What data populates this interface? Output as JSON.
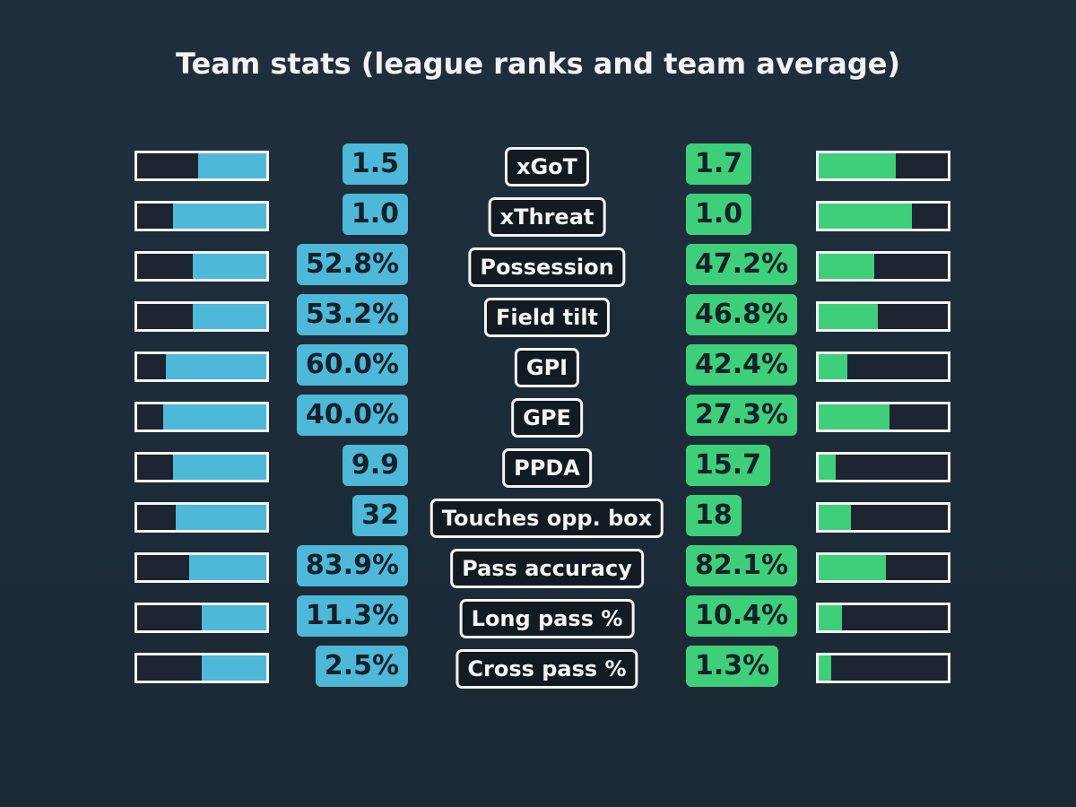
{
  "title": "Team stats (league ranks and team average)",
  "colors": {
    "left": "#4db8d8",
    "right": "#3ecf7a"
  },
  "rows": [
    {
      "label": "xGoT",
      "left_value": "1.5",
      "right_value": "1.7",
      "left_rank_fill": 53,
      "right_rank_fill": 60
    },
    {
      "label": "xThreat",
      "left_value": "1.0",
      "right_value": "1.0",
      "left_rank_fill": 72,
      "right_rank_fill": 72
    },
    {
      "label": "Possession",
      "left_value": "52.8%",
      "right_value": "47.2%",
      "left_rank_fill": 57,
      "right_rank_fill": 43
    },
    {
      "label": "Field tilt",
      "left_value": "53.2%",
      "right_value": "46.8%",
      "left_rank_fill": 57,
      "right_rank_fill": 46
    },
    {
      "label": "GPI",
      "left_value": "60.0%",
      "right_value": "42.4%",
      "left_rank_fill": 78,
      "right_rank_fill": 22
    },
    {
      "label": "GPE",
      "left_value": "40.0%",
      "right_value": "27.3%",
      "left_rank_fill": 80,
      "right_rank_fill": 55
    },
    {
      "label": "PPDA",
      "left_value": "9.9",
      "right_value": "15.7",
      "left_rank_fill": 72,
      "right_rank_fill": 13
    },
    {
      "label": "Touches opp. box",
      "left_value": "32",
      "right_value": "18",
      "left_rank_fill": 70,
      "right_rank_fill": 25
    },
    {
      "label": "Pass accuracy",
      "left_value": "83.9%",
      "right_value": "82.1%",
      "left_rank_fill": 60,
      "right_rank_fill": 52
    },
    {
      "label": "Long pass %",
      "left_value": "11.3%",
      "right_value": "10.4%",
      "left_rank_fill": 50,
      "right_rank_fill": 18
    },
    {
      "label": "Cross pass %",
      "left_value": "2.5%",
      "right_value": "1.3%",
      "left_rank_fill": 50,
      "right_rank_fill": 10
    }
  ]
}
